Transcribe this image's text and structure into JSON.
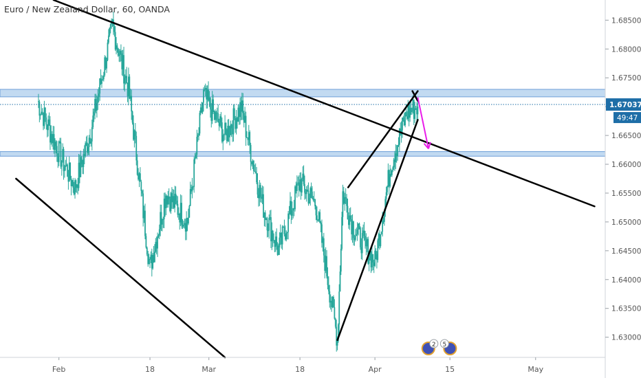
{
  "chart_title": "Euro / New Zealand Dollar, 60, OANDA",
  "current_price_label": "1.67037",
  "countdown_label": "49:47",
  "event_badges": [
    "2",
    "5"
  ],
  "colors": {
    "candle": "#26a69a",
    "zone_fill": "#bbd6f0",
    "zone_border": "#6d9ed8",
    "trendline": "#000000",
    "arrow": "#e91ee9",
    "price_tag": "#1e6ea7",
    "axis_text": "#555555"
  },
  "chart_data": {
    "type": "line",
    "title": "Euro / New Zealand Dollar, 60, OANDA",
    "x_tick_labels": [
      "Feb",
      "18",
      "Mar",
      "18",
      "Apr",
      "15",
      "May"
    ],
    "y_tick_labels": [
      "1.68500",
      "1.68000",
      "1.67500",
      "1.67000",
      "1.66500",
      "1.66000",
      "1.65500",
      "1.65000",
      "1.64500",
      "1.64000",
      "1.63500",
      "1.63000"
    ],
    "ylim": [
      1.6265,
      1.6885
    ],
    "x": [
      "Jan 28",
      "Feb 1",
      "Feb 4",
      "Feb 7",
      "Feb 11",
      "Feb 14",
      "Feb 18",
      "Feb 21",
      "Feb 25",
      "Feb 28",
      "Mar 4",
      "Mar 7",
      "Mar 11",
      "Mar 14",
      "Mar 18",
      "Mar 21",
      "Mar 25",
      "Mar 26",
      "Mar 28",
      "Apr 1",
      "Apr 4",
      "Apr 7",
      "Apr 9"
    ],
    "series": [
      {
        "values": [
          1.671,
          1.662,
          1.656,
          1.666,
          1.684,
          1.673,
          1.642,
          1.655,
          1.65,
          1.672,
          1.665,
          1.67,
          1.653,
          1.645,
          1.657,
          1.653,
          1.6295,
          1.655,
          1.649,
          1.643,
          1.66,
          1.669,
          1.67
        ]
      }
    ],
    "price_line": 1.67037,
    "horizontal_zones": [
      [
        1.6717,
        1.673
      ],
      [
        1.6614,
        1.6622
      ]
    ],
    "trendlines": [
      {
        "from": [
          "Jan 24",
          1.6575
        ],
        "to": [
          "Mar 4",
          1.6265
        ]
      },
      {
        "from": [
          "Jan 31",
          1.6885
        ],
        "to": [
          "May 12",
          1.6527
        ]
      },
      {
        "from": [
          "Mar 25",
          1.6295
        ],
        "to": [
          "Apr 9",
          1.6677
        ]
      },
      {
        "from": [
          "Mar 27",
          1.656
        ],
        "to": [
          "Apr 9",
          1.6727
        ]
      },
      {
        "from": [
          "Apr 8",
          1.6727
        ],
        "to": [
          "Apr 9",
          1.671
        ]
      }
    ],
    "forecast_arrow": {
      "from": [
        "Apr 9",
        1.6716
      ],
      "to": [
        "Apr 11",
        1.6627
      ]
    },
    "grid": false,
    "legend": "none"
  }
}
